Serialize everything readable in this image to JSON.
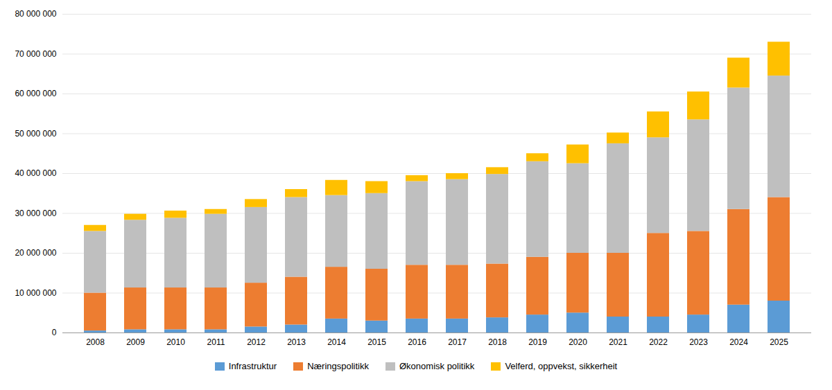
{
  "chart_data": {
    "type": "bar",
    "stacked": true,
    "categories": [
      "2008",
      "2009",
      "2010",
      "2011",
      "2012",
      "2013",
      "2014",
      "2015",
      "2016",
      "2017",
      "2018",
      "2019",
      "2020",
      "2021",
      "2022",
      "2023",
      "2024",
      "2025"
    ],
    "series": [
      {
        "name": "Infrastruktur",
        "color": "#5b9bd5",
        "values": [
          500000,
          800000,
          800000,
          800000,
          1500000,
          2000000,
          3500000,
          3000000,
          3500000,
          3500000,
          3800000,
          4500000,
          5000000,
          4000000,
          4000000,
          4500000,
          7000000,
          8000000
        ]
      },
      {
        "name": "Næringspolitikk",
        "color": "#ed7d31",
        "values": [
          9500000,
          10500000,
          10500000,
          10500000,
          11000000,
          12000000,
          13000000,
          13000000,
          13500000,
          13500000,
          13500000,
          14500000,
          15000000,
          16000000,
          21000000,
          21000000,
          24000000,
          26000000
        ]
      },
      {
        "name": "Økonomisk politikk",
        "color": "#bfbfbf",
        "values": [
          15500000,
          17000000,
          17500000,
          18500000,
          19000000,
          20000000,
          18000000,
          19000000,
          21000000,
          21500000,
          22500000,
          24000000,
          22500000,
          27500000,
          24000000,
          28000000,
          30500000,
          30500000
        ]
      },
      {
        "name": "Velferd, oppvekst, sikkerheit",
        "color": "#ffc000",
        "values": [
          1500000,
          1500000,
          1800000,
          1200000,
          2000000,
          2000000,
          3800000,
          3000000,
          1500000,
          1500000,
          1700000,
          2000000,
          4700000,
          2700000,
          6500000,
          7000000,
          7500000,
          8500000
        ]
      }
    ],
    "ylim": [
      0,
      80000000
    ],
    "yticks": [
      0,
      {
        "value": 10000000,
        "label": "10 000 000"
      },
      {
        "value": 20000000,
        "label": "20 000 000"
      },
      {
        "value": 30000000,
        "label": "30 000 000"
      },
      {
        "value": 40000000,
        "label": "40 000 000"
      },
      {
        "value": 50000000,
        "label": "50 000 000"
      },
      {
        "value": 60000000,
        "label": "60 000 000"
      },
      {
        "value": 70000000,
        "label": "70 000 000"
      },
      {
        "value": 80000000,
        "label": "80 000 000"
      }
    ],
    "grid": true,
    "legend": "bottom"
  }
}
